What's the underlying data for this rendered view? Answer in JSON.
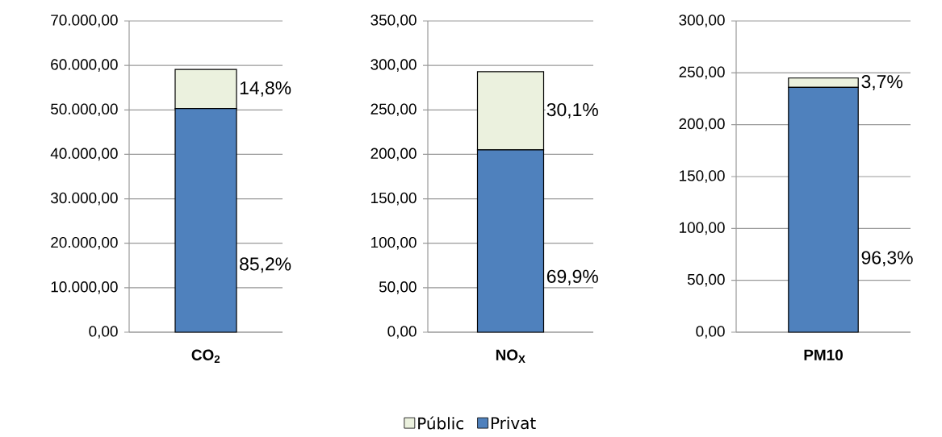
{
  "chart_data": [
    {
      "type": "bar",
      "stacked": true,
      "grid": "y",
      "categories": [
        "CO$_{2}$"
      ],
      "ylim": [
        0,
        70000
      ],
      "yticks": [
        {
          "value": 0,
          "label": "0,00"
        },
        {
          "value": 10000,
          "label": "10.000,00"
        },
        {
          "value": 20000,
          "label": "20.000,00"
        },
        {
          "value": 30000,
          "label": "30.000,00"
        },
        {
          "value": 40000,
          "label": "40.000,00"
        },
        {
          "value": 50000,
          "label": "50.000,00"
        },
        {
          "value": 60000,
          "label": "60.000,00"
        },
        {
          "value": 70000,
          "label": "70.000,00"
        }
      ],
      "series": [
        {
          "color": "#4f81bd",
          "values": [
            50300
          ]
        },
        {
          "color": "#ebf1de",
          "values": [
            8800
          ]
        }
      ],
      "annotations": [
        "85,2%",
        "14,8%"
      ]
    },
    {
      "type": "bar",
      "stacked": true,
      "grid": "y",
      "legend": "bottom",
      "categories": [
        "NO$_{X}$"
      ],
      "ylim": [
        0,
        350
      ],
      "yticks": [
        {
          "value": 0,
          "label": "0,00"
        },
        {
          "value": 50,
          "label": "50,00"
        },
        {
          "value": 100,
          "label": "100,00"
        },
        {
          "value": 150,
          "label": "150,00"
        },
        {
          "value": 200,
          "label": "200,00"
        },
        {
          "value": 250,
          "label": "250,00"
        },
        {
          "value": 300,
          "label": "300,00"
        },
        {
          "value": 350,
          "label": "350,00"
        }
      ],
      "series": [
        {
          "name": "Privat",
          "color": "#4f81bd",
          "values": [
            205
          ]
        },
        {
          "name": "Públic",
          "color": "#ebf1de",
          "values": [
            88
          ]
        }
      ],
      "annotations": [
        "69,9%",
        "30,1%"
      ]
    },
    {
      "type": "bar",
      "stacked": true,
      "grid": "y",
      "categories": [
        "PM10"
      ],
      "ylim": [
        0,
        300
      ],
      "yticks": [
        {
          "value": 0,
          "label": "0,00"
        },
        {
          "value": 50,
          "label": "50,00"
        },
        {
          "value": 100,
          "label": "100,00"
        },
        {
          "value": 150,
          "label": "150,00"
        },
        {
          "value": 200,
          "label": "200,00"
        },
        {
          "value": 250,
          "label": "250,00"
        },
        {
          "value": 300,
          "label": "300,00"
        }
      ],
      "series": [
        {
          "color": "#4f81bd",
          "values": [
            236
          ]
        },
        {
          "color": "#ebf1de",
          "values": [
            9
          ]
        }
      ],
      "annotations": [
        "96,3%",
        "3,7%"
      ]
    }
  ]
}
